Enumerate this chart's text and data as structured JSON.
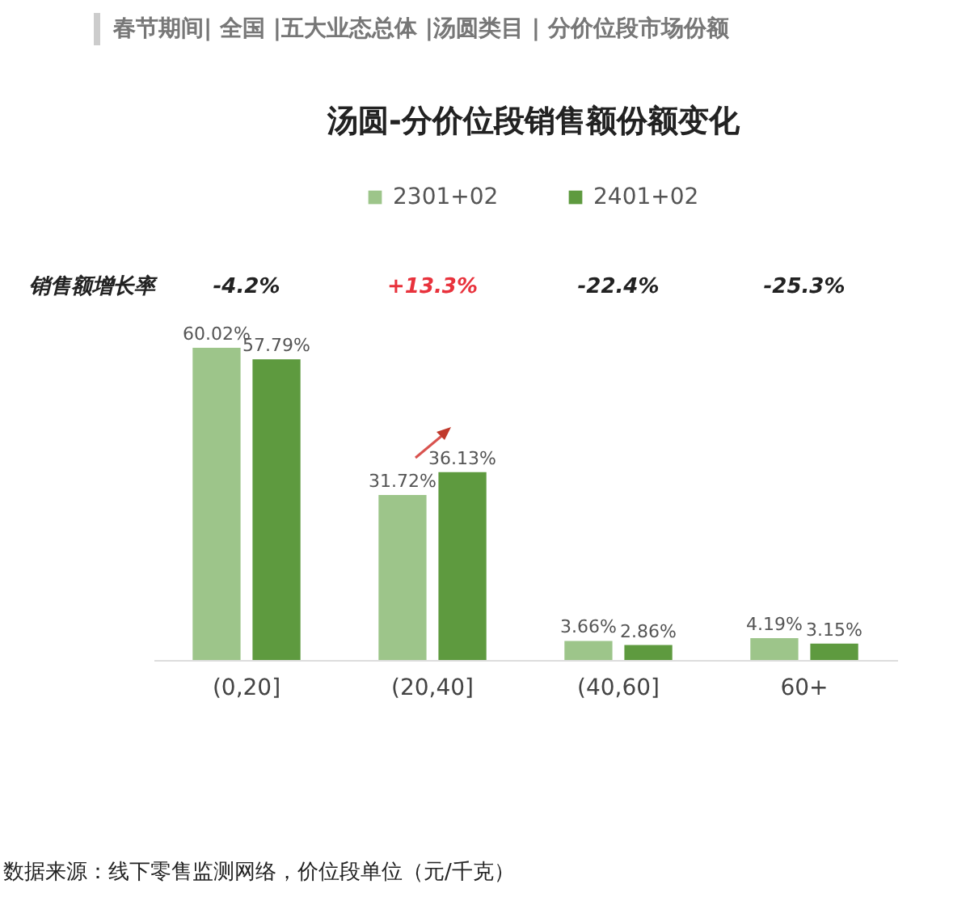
{
  "chart_data": {
    "type": "bar",
    "title": "汤圆-分价位段销售额份额变化",
    "categories": [
      "(0,20]",
      "(20,40]",
      "(40,60]",
      "60+"
    ],
    "series": [
      {
        "name": "2301+02",
        "color": "#9dc58a",
        "values": [
          60.02,
          31.72,
          3.66,
          4.19
        ],
        "value_labels": [
          "60.02%",
          "31.72%",
          "3.66%",
          "4.19%"
        ]
      },
      {
        "name": "2401+02",
        "color": "#5e9a3f",
        "values": [
          57.79,
          36.13,
          2.86,
          3.15
        ],
        "value_labels": [
          "57.79%",
          "36.13%",
          "2.86%",
          "3.15%"
        ]
      }
    ],
    "annotations": [
      "春节期间| 全国 |五大业态总体 |汤圆类目 | 分价位段市场份额",
      "销售额增长率",
      "-4.2%",
      "+13.3%",
      "-22.4%",
      "-25.3%",
      "数据来源：线下零售监测网络，价位段单位（元/千克）"
    ],
    "legend": "top",
    "grid": false
  }
}
